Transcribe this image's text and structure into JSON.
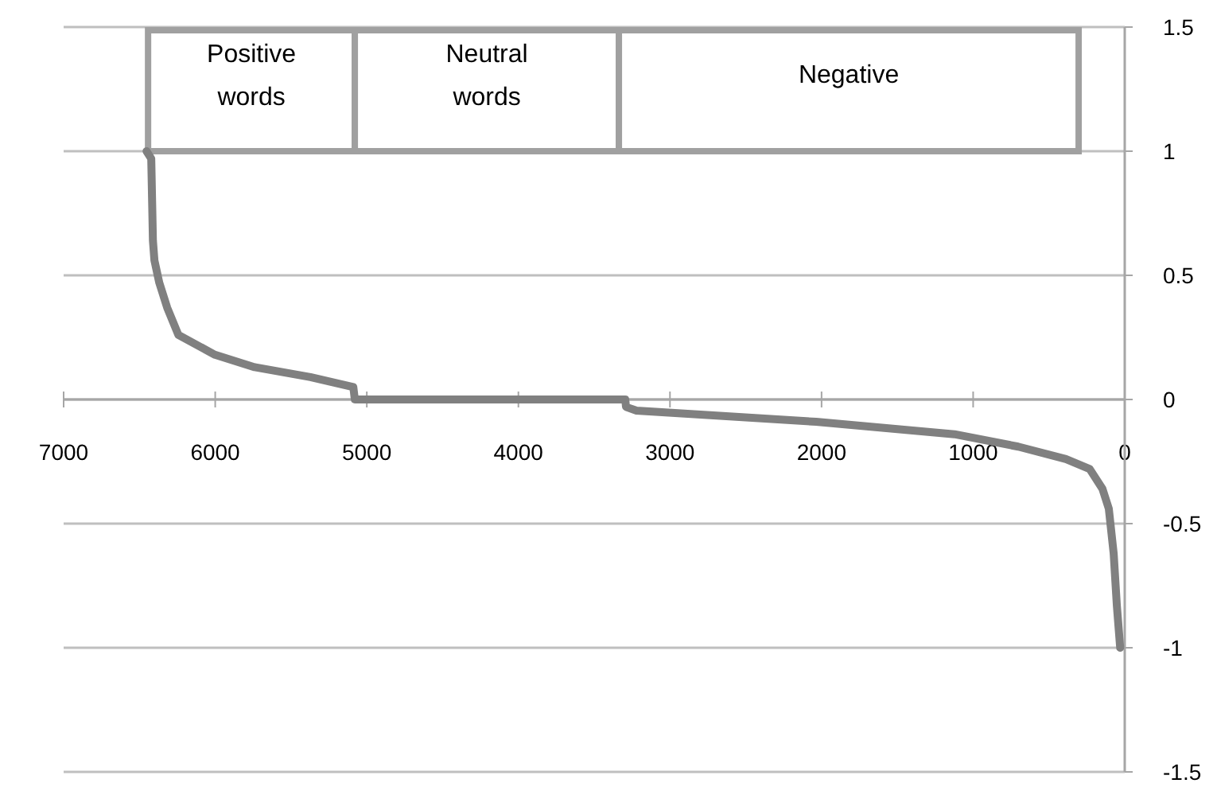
{
  "chart_data": {
    "type": "line",
    "x": [
      6453,
      6422,
      6411,
      6401,
      6369,
      6317,
      6243,
      6002,
      5740,
      5372,
      5089,
      5079,
      3295,
      3290,
      3221,
      2036,
      1123,
      703,
      388,
      231,
      147,
      105,
      73,
      52,
      30
    ],
    "series": [
      {
        "color": "#808080",
        "values": [
          1,
          0.97,
          0.64,
          0.56,
          0.47,
          0.37,
          0.26,
          0.18,
          0.13,
          0.09,
          0.05,
          0,
          0,
          -0.03,
          -0.045,
          -0.09,
          -0.14,
          -0.19,
          -0.24,
          -0.28,
          -0.36,
          -0.44,
          -0.62,
          -0.83,
          -1
        ]
      }
    ],
    "xlim": [
      7000,
      0
    ],
    "xticks": [
      7000,
      6000,
      5000,
      4000,
      3000,
      2000,
      1000,
      0
    ],
    "ylim": [
      -1.5,
      1.5
    ],
    "yticks": [
      -1.5,
      -1,
      -0.5,
      0,
      0.5,
      1,
      1.5
    ],
    "grid": "y",
    "marker": "none",
    "line_style": "solid",
    "bands": [
      {
        "axis": "x",
        "from": 6443,
        "to": 5079,
        "label": "Positive words",
        "color": "#a0a0a0"
      },
      {
        "axis": "x",
        "from": 5079,
        "to": 3337,
        "label": "Neutral words",
        "color": "#a0a0a0"
      },
      {
        "axis": "x",
        "from": 3337,
        "to": 304,
        "label": "Negative",
        "color": "#a0a0a0"
      }
    ]
  }
}
